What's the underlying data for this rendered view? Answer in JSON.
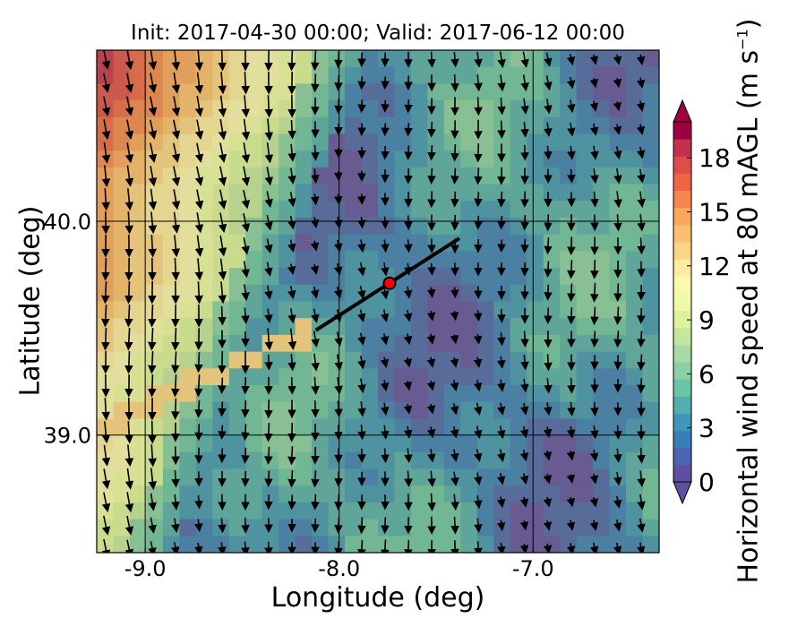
{
  "chart_data": {
    "type": "heatmap",
    "title": "Init: 2017-04-30 00:00; Valid: 2017-06-12 00:00",
    "xlabel": "Longitude (deg)",
    "ylabel": "Latitude (deg)",
    "xlim": [
      -9.25,
      -6.35
    ],
    "ylim": [
      38.45,
      40.8
    ],
    "xticks": [
      -9.0,
      -8.0,
      -7.0
    ],
    "xtick_labels": [
      "-9.0",
      "-8.0",
      "-7.0"
    ],
    "yticks": [
      39.0,
      40.0
    ],
    "ytick_labels": [
      "39.0",
      "40.0"
    ],
    "grid": true,
    "colorbar": {
      "label": "Horizontal wind speed at 80 mAGL",
      "unit_prefix": "(m s",
      "unit_exponent": "−1",
      "unit_suffix": ")",
      "min": 0,
      "max": 20,
      "tick_values": [
        0,
        3,
        6,
        9,
        12,
        15,
        18
      ],
      "tick_labels": [
        "0",
        "3",
        "6",
        "9",
        "12",
        "15",
        "18"
      ],
      "extend": "both",
      "colors": [
        "#5e4fa2",
        "#4b65ae",
        "#3a7eb8",
        "#3f96b7",
        "#54aead",
        "#6bc4a4",
        "#89d0a4",
        "#a6dba4",
        "#c3e79e",
        "#dcf29c",
        "#eff9a6",
        "#fbf8b0",
        "#feebA0",
        "#fdd585",
        "#fdbf6f",
        "#fca55d",
        "#f7864e",
        "#ed6545",
        "#de4c4b",
        "#c5304e",
        "#9e0142"
      ]
    },
    "cross_section": {
      "start": {
        "lon": -8.12,
        "lat": 39.49
      },
      "end": {
        "lon": -7.38,
        "lat": 39.92
      },
      "marker": {
        "lon": -7.74,
        "lat": 39.71,
        "color": "#ff0000"
      }
    }
  }
}
